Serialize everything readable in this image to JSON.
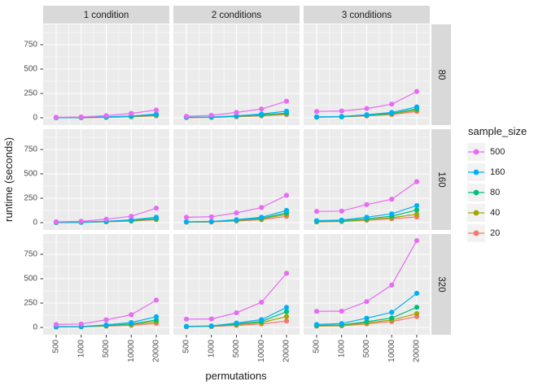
{
  "figure": {
    "background": "#FFFFFF",
    "panel_background": "#EBEBEB",
    "gridline_color": "#FFFFFF",
    "strip_background": "#D9D9D9",
    "legend_key_background": "#F2F2F2",
    "axis_text_color": "#4D4D4D",
    "tick_mark_color": "#333333"
  },
  "chart_data": {
    "type": "line",
    "title": "",
    "xlabel": "permutations",
    "ylabel": "runtime (seconds)",
    "x": [
      500,
      1000,
      5000,
      10000,
      20000
    ],
    "x_tick_labels": [
      "500",
      "1000",
      "5000",
      "10000",
      "20000"
    ],
    "y_ticks": [
      0,
      250,
      500,
      750
    ],
    "y_minor_ticks": [
      125,
      375,
      625,
      875
    ],
    "ylim": [
      -75,
      958
    ],
    "grid": true,
    "legend_position": "right",
    "legend_title": "sample_size",
    "legend_entries": [
      "500",
      "160",
      "80",
      "40",
      "20"
    ],
    "series_colors": {
      "500": "#E76BF3",
      "160": "#00B0F6",
      "80": "#00BF7D",
      "40": "#A3A500",
      "20": "#F8766D"
    },
    "facet_columns": [
      "1 condition",
      "2 conditions",
      "3 conditions"
    ],
    "facet_rows": [
      "80",
      "160",
      "320"
    ],
    "facets": [
      {
        "row": "80",
        "column": "1 condition",
        "series": [
          {
            "name": "500",
            "values": [
              5,
              8,
              22,
              45,
              80
            ]
          },
          {
            "name": "160",
            "values": [
              2,
              3,
              9,
              18,
              38
            ]
          },
          {
            "name": "80",
            "values": [
              2,
              3,
              7,
              14,
              30
            ]
          },
          {
            "name": "40",
            "values": [
              1,
              2,
              6,
              12,
              26
            ]
          },
          {
            "name": "20",
            "values": [
              1,
              2,
              5,
              10,
              21
            ]
          }
        ]
      },
      {
        "row": "80",
        "column": "2 conditions",
        "series": [
          {
            "name": "500",
            "values": [
              15,
              25,
              55,
              90,
              170
            ]
          },
          {
            "name": "160",
            "values": [
              5,
              8,
              20,
              38,
              68
            ]
          },
          {
            "name": "80",
            "values": [
              4,
              6,
              16,
              30,
              48
            ]
          },
          {
            "name": "40",
            "values": [
              3,
              5,
              13,
              25,
              40
            ]
          },
          {
            "name": "20",
            "values": [
              3,
              4,
              11,
              20,
              33
            ]
          }
        ]
      },
      {
        "row": "80",
        "column": "3 conditions",
        "series": [
          {
            "name": "500",
            "values": [
              65,
              70,
              95,
              140,
              270
            ]
          },
          {
            "name": "160",
            "values": [
              10,
              14,
              32,
              55,
              112
            ]
          },
          {
            "name": "80",
            "values": [
              8,
              11,
              26,
              45,
              92
            ]
          },
          {
            "name": "40",
            "values": [
              7,
              10,
              23,
              40,
              80
            ]
          },
          {
            "name": "20",
            "values": [
              6,
              9,
              19,
              33,
              66
            ]
          }
        ]
      },
      {
        "row": "160",
        "column": "1 condition",
        "series": [
          {
            "name": "500",
            "values": [
              8,
              14,
              35,
              65,
              148
            ]
          },
          {
            "name": "160",
            "values": [
              3,
              5,
              14,
              28,
              56
            ]
          },
          {
            "name": "80",
            "values": [
              2,
              4,
              11,
              22,
              42
            ]
          },
          {
            "name": "40",
            "values": [
              2,
              3,
              9,
              18,
              36
            ]
          },
          {
            "name": "20",
            "values": [
              2,
              3,
              8,
              15,
              30
            ]
          }
        ]
      },
      {
        "row": "160",
        "column": "2 conditions",
        "series": [
          {
            "name": "500",
            "values": [
              55,
              60,
              100,
              155,
              280
            ]
          },
          {
            "name": "160",
            "values": [
              8,
              12,
              30,
              55,
              125
            ]
          },
          {
            "name": "80",
            "values": [
              7,
              10,
              25,
              45,
              100
            ]
          },
          {
            "name": "40",
            "values": [
              6,
              8,
              21,
              38,
              84
            ]
          },
          {
            "name": "20",
            "values": [
              5,
              7,
              17,
              30,
              64
            ]
          }
        ]
      },
      {
        "row": "160",
        "column": "3 conditions",
        "series": [
          {
            "name": "500",
            "values": [
              115,
              118,
              185,
              240,
              420
            ]
          },
          {
            "name": "160",
            "values": [
              20,
              26,
              56,
              90,
              175
            ]
          },
          {
            "name": "80",
            "values": [
              13,
              18,
              40,
              66,
              130
            ]
          },
          {
            "name": "40",
            "values": [
              9,
              13,
              29,
              50,
              86
            ]
          },
          {
            "name": "20",
            "values": [
              7,
              11,
              23,
              40,
              58
            ]
          }
        ]
      },
      {
        "row": "320",
        "column": "1 condition",
        "series": [
          {
            "name": "500",
            "values": [
              30,
              35,
              78,
              130,
              280
            ]
          },
          {
            "name": "160",
            "values": [
              8,
              10,
              26,
              50,
              110
            ]
          },
          {
            "name": "80",
            "values": [
              6,
              8,
              19,
              36,
              76
            ]
          },
          {
            "name": "40",
            "values": [
              5,
              7,
              16,
              30,
              60
            ]
          },
          {
            "name": "20",
            "values": [
              4,
              6,
              13,
              22,
              42
            ]
          }
        ]
      },
      {
        "row": "320",
        "column": "2 conditions",
        "series": [
          {
            "name": "500",
            "values": [
              85,
              87,
              150,
              258,
              555
            ]
          },
          {
            "name": "160",
            "values": [
              12,
              16,
              45,
              80,
              205
            ]
          },
          {
            "name": "80",
            "values": [
              10,
              13,
              36,
              62,
              162
            ]
          },
          {
            "name": "40",
            "values": [
              8,
              11,
              29,
              50,
              112
            ]
          },
          {
            "name": "20",
            "values": [
              7,
              9,
              21,
              36,
              66
            ]
          }
        ]
      },
      {
        "row": "320",
        "column": "3 conditions",
        "series": [
          {
            "name": "500",
            "values": [
              165,
              167,
              265,
              435,
              890
            ]
          },
          {
            "name": "160",
            "values": [
              30,
              40,
              95,
              155,
              350
            ]
          },
          {
            "name": "80",
            "values": [
              21,
              27,
              58,
              97,
              207
            ]
          },
          {
            "name": "40",
            "values": [
              16,
              21,
              46,
              76,
              142
            ]
          },
          {
            "name": "20",
            "values": [
              13,
              17,
              36,
              60,
              112
            ]
          }
        ]
      }
    ]
  }
}
